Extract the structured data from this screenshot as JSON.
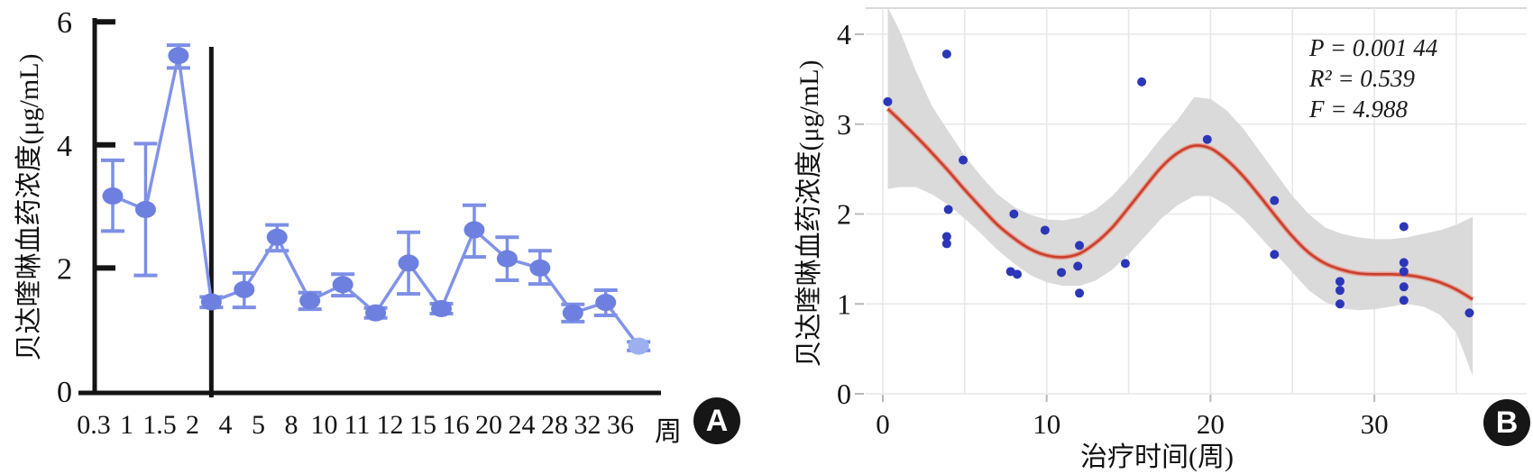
{
  "figure": {
    "panels": [
      "A",
      "B"
    ]
  },
  "chart_data": [
    {
      "id": "A",
      "type": "line",
      "title": "",
      "ylabel": "贝达喹啉血药浓度(μg/mL)",
      "xlabel": "",
      "x_unit": "周",
      "badge": "A",
      "ylim": [
        0,
        6
      ],
      "y_ticks": [
        0,
        2,
        4,
        6
      ],
      "grid": "off",
      "categories": [
        "0.3",
        "1",
        "1.5",
        "2",
        "4",
        "5",
        "8",
        "10",
        "11",
        "12",
        "15",
        "16",
        "20",
        "24",
        "28",
        "32",
        "36"
      ],
      "values": [
        3.17,
        2.95,
        5.45,
        1.45,
        1.65,
        2.5,
        1.47,
        1.73,
        1.27,
        2.08,
        1.34,
        2.62,
        2.15,
        2.0,
        1.27,
        1.44,
        0.73
      ],
      "err_low": [
        2.6,
        1.88,
        5.25,
        1.36,
        1.36,
        2.28,
        1.33,
        1.55,
        1.19,
        1.58,
        1.26,
        2.18,
        1.8,
        1.74,
        1.13,
        1.23,
        0.66
      ],
      "err_high": [
        3.75,
        4.02,
        5.62,
        1.53,
        1.92,
        2.7,
        1.6,
        1.9,
        1.35,
        2.58,
        1.42,
        3.02,
        2.5,
        2.28,
        1.41,
        1.64,
        0.8
      ],
      "divider_after_category": "2",
      "colors": {
        "axis": "#141414",
        "divider": "#141414",
        "point": "#6d80e0",
        "point_last": "#9cb0f0",
        "line": "#8193e8",
        "error": "#7d8fe5"
      }
    },
    {
      "id": "B",
      "type": "scatter",
      "title": "",
      "ylabel": "贝达喹啉血药浓度(μg/mL)",
      "xlabel": "治疗时间(周)",
      "badge": "B",
      "xlim": [
        0,
        36.5
      ],
      "ylim": [
        0,
        4.3
      ],
      "x_ticks": [
        0,
        10,
        20,
        30
      ],
      "y_ticks": [
        0,
        1,
        2,
        3,
        4
      ],
      "grid": "on",
      "grid_x_step": 5,
      "annotations": [
        "P = 0.001 44",
        "R² = 0.539",
        "F = 4.988"
      ],
      "points": [
        [
          0.3,
          3.25
        ],
        [
          3.9,
          3.78
        ],
        [
          4,
          2.05
        ],
        [
          3.9,
          1.75
        ],
        [
          3.9,
          1.67
        ],
        [
          4.9,
          2.6
        ],
        [
          8,
          2.0
        ],
        [
          7.8,
          1.36
        ],
        [
          8.2,
          1.33
        ],
        [
          9.9,
          1.82
        ],
        [
          10.9,
          1.35
        ],
        [
          12,
          1.65
        ],
        [
          11.9,
          1.42
        ],
        [
          12,
          1.12
        ],
        [
          14.8,
          1.45
        ],
        [
          15.8,
          3.47
        ],
        [
          19.8,
          2.83
        ],
        [
          23.9,
          2.15
        ],
        [
          23.9,
          1.55
        ],
        [
          27.9,
          1.25
        ],
        [
          27.9,
          1.15
        ],
        [
          27.9,
          1.0
        ],
        [
          31.8,
          1.86
        ],
        [
          31.8,
          1.46
        ],
        [
          31.8,
          1.36
        ],
        [
          31.8,
          1.19
        ],
        [
          31.8,
          1.04
        ],
        [
          35.8,
          0.9
        ]
      ],
      "fit_curve": [
        [
          0.3,
          3.17
        ],
        [
          1,
          3.05
        ],
        [
          2,
          2.87
        ],
        [
          3,
          2.68
        ],
        [
          4,
          2.48
        ],
        [
          5,
          2.27
        ],
        [
          6,
          2.07
        ],
        [
          7,
          1.88
        ],
        [
          8,
          1.73
        ],
        [
          9,
          1.61
        ],
        [
          10,
          1.54
        ],
        [
          11,
          1.52
        ],
        [
          12,
          1.56
        ],
        [
          13,
          1.68
        ],
        [
          14,
          1.85
        ],
        [
          15,
          2.07
        ],
        [
          16,
          2.3
        ],
        [
          17,
          2.52
        ],
        [
          18,
          2.68
        ],
        [
          19,
          2.76
        ],
        [
          20,
          2.73
        ],
        [
          21,
          2.6
        ],
        [
          22,
          2.42
        ],
        [
          23,
          2.2
        ],
        [
          24,
          1.97
        ],
        [
          25,
          1.75
        ],
        [
          26,
          1.57
        ],
        [
          27,
          1.45
        ],
        [
          28,
          1.38
        ],
        [
          29,
          1.34
        ],
        [
          30,
          1.33
        ],
        [
          31,
          1.33
        ],
        [
          32,
          1.32
        ],
        [
          33,
          1.29
        ],
        [
          34,
          1.24
        ],
        [
          35,
          1.16
        ],
        [
          36,
          1.05
        ]
      ],
      "conf_band": [
        [
          0.3,
          2.28,
          4.3
        ],
        [
          1,
          2.3,
          4.05
        ],
        [
          2,
          2.3,
          3.6
        ],
        [
          3,
          2.22,
          3.2
        ],
        [
          4,
          2.1,
          2.92
        ],
        [
          5,
          1.95,
          2.65
        ],
        [
          6,
          1.78,
          2.42
        ],
        [
          7,
          1.6,
          2.22
        ],
        [
          8,
          1.45,
          2.08
        ],
        [
          9,
          1.32,
          1.99
        ],
        [
          10,
          1.24,
          1.94
        ],
        [
          11,
          1.2,
          1.93
        ],
        [
          12,
          1.2,
          1.96
        ],
        [
          13,
          1.26,
          2.05
        ],
        [
          14,
          1.38,
          2.2
        ],
        [
          15,
          1.55,
          2.4
        ],
        [
          16,
          1.75,
          2.62
        ],
        [
          17,
          1.95,
          2.85
        ],
        [
          18,
          2.1,
          3.05
        ],
        [
          19,
          2.2,
          3.3
        ],
        [
          20,
          2.2,
          3.28
        ],
        [
          21,
          2.1,
          3.15
        ],
        [
          22,
          1.95,
          2.95
        ],
        [
          23,
          1.75,
          2.7
        ],
        [
          24,
          1.55,
          2.45
        ],
        [
          25,
          1.35,
          2.2
        ],
        [
          26,
          1.15,
          2.0
        ],
        [
          27,
          1.02,
          1.85
        ],
        [
          28,
          0.95,
          1.78
        ],
        [
          29,
          0.93,
          1.74
        ],
        [
          30,
          0.94,
          1.72
        ],
        [
          31,
          0.97,
          1.72
        ],
        [
          32,
          1.0,
          1.74
        ],
        [
          33,
          0.97,
          1.78
        ],
        [
          34,
          0.88,
          1.82
        ],
        [
          35,
          0.68,
          1.88
        ],
        [
          36,
          0.2,
          1.97
        ]
      ],
      "colors": {
        "point": "#2c36b8",
        "curve": "#c8402f",
        "curve_halo": "#e79b8e",
        "band": "#d8d8d8",
        "grid": "#e7e7e7",
        "tick": "#b8b8b8",
        "border": "#d9d9d9",
        "text": "#1a1a1a"
      }
    }
  ]
}
